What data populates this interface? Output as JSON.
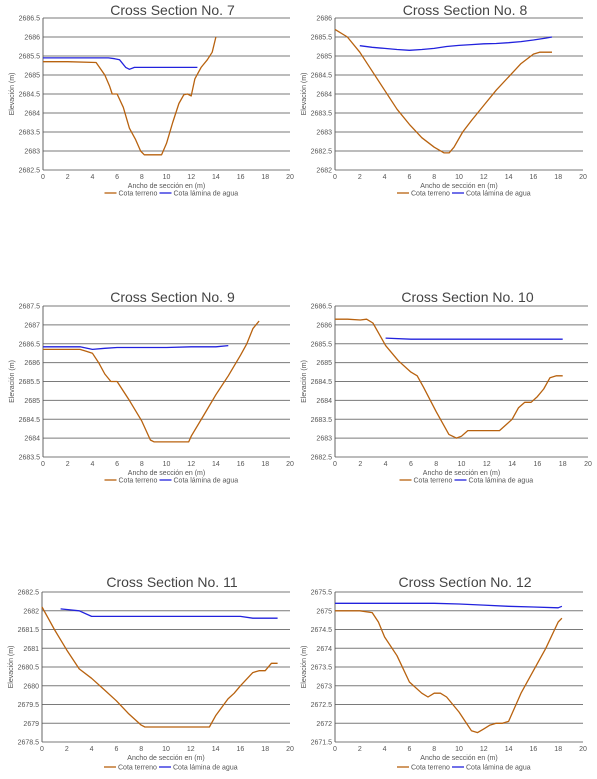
{
  "chart_data": [
    {
      "type": "line",
      "title": "Cross Section No. 7",
      "xlabel": "Ancho de sección en (m)",
      "ylabel": "Elevación (m)",
      "xlim": [
        0,
        20
      ],
      "ylim": [
        2682.5,
        2686.5
      ],
      "xticks": [
        0,
        2,
        4,
        6,
        8,
        10,
        12,
        14,
        16,
        18,
        20
      ],
      "yticks": [
        2682.5,
        2683,
        2683.5,
        2684,
        2684.5,
        2685,
        2685.5,
        2686,
        2686.5
      ],
      "ytick_labels": [
        "2682.5",
        "2683",
        "2683.5",
        "2684",
        "2684.5",
        "2685",
        "2685.5",
        "2686",
        "2686.5"
      ],
      "grid": true,
      "legend_position": "bottom",
      "series": [
        {
          "name": "Cota terreno",
          "color": "#b8620f",
          "x": [
            0,
            2,
            4.3,
            5,
            5.4,
            5.6,
            6,
            6.5,
            7,
            7.5,
            7.9,
            8.2,
            8.6,
            9.3,
            9.6,
            10,
            10.5,
            11,
            11.4,
            11.7,
            12,
            12.3,
            12.8,
            13.3,
            13.7,
            14
          ],
          "y": [
            2685.35,
            2685.35,
            2685.33,
            2685.0,
            2684.7,
            2684.5,
            2684.5,
            2684.15,
            2683.6,
            2683.3,
            2683.0,
            2682.9,
            2682.9,
            2682.9,
            2682.9,
            2683.2,
            2683.75,
            2684.25,
            2684.48,
            2684.5,
            2684.45,
            2684.9,
            2685.2,
            2685.4,
            2685.6,
            2686.0
          ]
        },
        {
          "name": "Cota lámina de agua",
          "color": "#2222dd",
          "x": [
            0,
            2,
            4,
            5.3,
            5.8,
            6.2,
            6.7,
            7.0,
            7.4,
            8,
            10,
            12,
            12.5
          ],
          "y": [
            2685.45,
            2685.45,
            2685.45,
            2685.45,
            2685.43,
            2685.4,
            2685.2,
            2685.15,
            2685.2,
            2685.2,
            2685.2,
            2685.2,
            2685.2
          ]
        }
      ]
    },
    {
      "type": "line",
      "title": "Cross Section No. 8",
      "xlabel": "Ancho de sección en (m)",
      "ylabel": "Elevación (m)",
      "xlim": [
        0,
        20
      ],
      "ylim": [
        2682,
        2686
      ],
      "xticks": [
        0,
        2,
        4,
        6,
        8,
        10,
        12,
        14,
        16,
        18,
        20
      ],
      "yticks": [
        2682,
        2682.5,
        2683,
        2683.5,
        2684,
        2684.5,
        2685,
        2685.5,
        2686
      ],
      "ytick_labels": [
        "2682",
        "2682.5",
        "2683",
        "2683.5",
        "2684",
        "2684.5",
        "2685",
        "2685.5",
        "2686"
      ],
      "grid": true,
      "legend_position": "bottom",
      "series": [
        {
          "name": "Cota terreno",
          "color": "#b8620f",
          "x": [
            0,
            1,
            2,
            3,
            4,
            5,
            6,
            7,
            8,
            8.8,
            9.2,
            9.6,
            10.3,
            11,
            12,
            13,
            14,
            15,
            16,
            16.5,
            17,
            17.5
          ],
          "y": [
            2685.7,
            2685.5,
            2685.1,
            2684.6,
            2684.1,
            2683.6,
            2683.2,
            2682.85,
            2682.6,
            2682.45,
            2682.45,
            2682.6,
            2683.0,
            2683.3,
            2683.7,
            2684.1,
            2684.45,
            2684.8,
            2685.05,
            2685.1,
            2685.1,
            2685.1
          ]
        },
        {
          "name": "Cota lámina de agua",
          "color": "#2222dd",
          "x": [
            2,
            3,
            4,
            5,
            6,
            7,
            8,
            9,
            10,
            11,
            12,
            13,
            14,
            15,
            16,
            17,
            17.5
          ],
          "y": [
            2685.27,
            2685.23,
            2685.2,
            2685.17,
            2685.15,
            2685.17,
            2685.2,
            2685.25,
            2685.28,
            2685.3,
            2685.32,
            2685.33,
            2685.35,
            2685.38,
            2685.42,
            2685.47,
            2685.5
          ]
        }
      ]
    },
    {
      "type": "line",
      "title": "Cross Section No. 9",
      "xlabel": "Ancho de sección en (m)",
      "ylabel": "Elevación (m)",
      "xlim": [
        0,
        20
      ],
      "ylim": [
        2683.5,
        2687.5
      ],
      "xticks": [
        0,
        2,
        4,
        6,
        8,
        10,
        12,
        14,
        16,
        18,
        20
      ],
      "yticks": [
        2683.5,
        2684,
        2684.5,
        2685,
        2685.5,
        2686,
        2686.5,
        2687,
        2687.5
      ],
      "ytick_labels": [
        "2683.5",
        "2684",
        "2684.5",
        "2685",
        "2685.5",
        "2686",
        "2686.5",
        "2687",
        "2687.5"
      ],
      "grid": true,
      "legend_position": "bottom",
      "series": [
        {
          "name": "Cota terreno",
          "color": "#b8620f",
          "x": [
            0,
            1,
            2,
            3,
            3.5,
            4,
            4.5,
            5,
            5.5,
            6,
            7,
            8,
            8.7,
            9,
            10,
            11,
            11.8,
            12,
            13,
            14,
            15,
            16,
            16.5,
            17,
            17.5
          ],
          "y": [
            2686.35,
            2686.35,
            2686.35,
            2686.35,
            2686.3,
            2686.25,
            2686.0,
            2685.7,
            2685.5,
            2685.5,
            2685.0,
            2684.45,
            2683.95,
            2683.9,
            2683.9,
            2683.9,
            2683.9,
            2684.05,
            2684.6,
            2685.15,
            2685.65,
            2686.2,
            2686.5,
            2686.9,
            2687.1
          ]
        },
        {
          "name": "Cota lámina de agua",
          "color": "#2222dd",
          "x": [
            0,
            1,
            2,
            3,
            4,
            5,
            6,
            8,
            10,
            12,
            14,
            15
          ],
          "y": [
            2686.42,
            2686.42,
            2686.42,
            2686.42,
            2686.35,
            2686.38,
            2686.4,
            2686.4,
            2686.4,
            2686.42,
            2686.42,
            2686.45
          ]
        }
      ]
    },
    {
      "type": "line",
      "title": "Cross Section No. 10",
      "xlabel": "Ancho de sección en (m)",
      "ylabel": "Elevación (m)",
      "xlim": [
        0,
        20
      ],
      "ylim": [
        2682.5,
        2686.5
      ],
      "xticks": [
        0,
        2,
        4,
        6,
        8,
        10,
        12,
        14,
        16,
        18,
        20
      ],
      "yticks": [
        2682.5,
        2683,
        2683.5,
        2684,
        2684.5,
        2685,
        2685.5,
        2686,
        2686.5
      ],
      "ytick_labels": [
        "2682.5",
        "2683",
        "2683.5",
        "2684",
        "2684.5",
        "2685",
        "2685.5",
        "2686",
        "2686.5"
      ],
      "grid": true,
      "legend_position": "bottom",
      "series": [
        {
          "name": "Cota terreno",
          "color": "#b8620f",
          "x": [
            0,
            1,
            2,
            2.5,
            3,
            3.5,
            4,
            5,
            6,
            6.5,
            7,
            8,
            9,
            9.6,
            10,
            10.5,
            11,
            12,
            13,
            14,
            14.5,
            15,
            15.5,
            16,
            16.5,
            17,
            17.5,
            18
          ],
          "y": [
            2686.15,
            2686.15,
            2686.13,
            2686.15,
            2686.05,
            2685.75,
            2685.45,
            2685.05,
            2684.75,
            2684.65,
            2684.35,
            2683.7,
            2683.1,
            2683.0,
            2683.05,
            2683.2,
            2683.2,
            2683.2,
            2683.2,
            2683.5,
            2683.8,
            2683.95,
            2683.95,
            2684.1,
            2684.3,
            2684.6,
            2684.65,
            2684.65
          ]
        },
        {
          "name": "Cota lámina de agua",
          "color": "#2222dd",
          "x": [
            4,
            6,
            8,
            10,
            12,
            14,
            16,
            18
          ],
          "y": [
            2685.65,
            2685.62,
            2685.62,
            2685.62,
            2685.62,
            2685.62,
            2685.62,
            2685.62
          ]
        }
      ]
    },
    {
      "type": "line",
      "title": "Cross Section No. 11",
      "xlabel": "Ancho de sección en (m)",
      "ylabel": "Elevación (m)",
      "xlim": [
        0,
        20
      ],
      "ylim": [
        2678.5,
        2682.5
      ],
      "xticks": [
        0,
        2,
        4,
        6,
        8,
        10,
        12,
        14,
        16,
        18,
        20
      ],
      "yticks": [
        2678.5,
        2679,
        2679.5,
        2680,
        2680.5,
        2681,
        2681.5,
        2682,
        2682.5
      ],
      "ytick_labels": [
        "2678.5",
        "2679",
        "2679.5",
        "2680",
        "2680.5",
        "2681",
        "2681.5",
        "2682",
        "2682.5"
      ],
      "grid": true,
      "legend_position": "bottom",
      "series": [
        {
          "name": "Cota terreno",
          "color": "#b8620f",
          "x": [
            0,
            0.5,
            1,
            2,
            3,
            4,
            5,
            6,
            7,
            8,
            8.3,
            9,
            10,
            11,
            12,
            13,
            13.5,
            14,
            15,
            15.5,
            16,
            17,
            17.5,
            18,
            18.5,
            19
          ],
          "y": [
            2682.1,
            2681.8,
            2681.5,
            2680.95,
            2680.45,
            2680.2,
            2679.9,
            2679.6,
            2679.25,
            2678.95,
            2678.9,
            2678.9,
            2678.9,
            2678.9,
            2678.9,
            2678.9,
            2678.9,
            2679.2,
            2679.65,
            2679.8,
            2680.0,
            2680.35,
            2680.4,
            2680.4,
            2680.6,
            2680.6
          ]
        },
        {
          "name": "Cota lámina de agua",
          "color": "#2222dd",
          "x": [
            1.5,
            3,
            4,
            5,
            8,
            10,
            12,
            14,
            16,
            17,
            19
          ],
          "y": [
            2682.05,
            2682.0,
            2681.85,
            2681.85,
            2681.85,
            2681.85,
            2681.85,
            2681.85,
            2681.85,
            2681.8,
            2681.8
          ]
        }
      ]
    },
    {
      "type": "line",
      "title": "Cross Sectíon No. 12",
      "xlabel": "Ancho de sección en (m)",
      "ylabel": "Elevación (m)",
      "xlim": [
        0,
        20
      ],
      "ylim": [
        2671.5,
        2675.5
      ],
      "xticks": [
        0,
        2,
        4,
        6,
        8,
        10,
        12,
        14,
        16,
        18,
        20
      ],
      "yticks": [
        2671.5,
        2672,
        2672.5,
        2673,
        2673.5,
        2674,
        2674.5,
        2675,
        2675.5
      ],
      "ytick_labels": [
        "2671.5",
        "2672",
        "2672.5",
        "2673",
        "2673.5",
        "2674",
        "2674.5",
        "2675",
        "2675.5"
      ],
      "grid": true,
      "legend_position": "bottom",
      "series": [
        {
          "name": "Cota terreno",
          "color": "#b8620f",
          "x": [
            0,
            1,
            2,
            3,
            3.5,
            4,
            5,
            6,
            7,
            7.5,
            8,
            8.5,
            9,
            9.5,
            10,
            10.5,
            11,
            11.5,
            12,
            12.5,
            13,
            13.5,
            14,
            15,
            16,
            17,
            18,
            18.3
          ],
          "y": [
            2675.0,
            2675.0,
            2675.0,
            2674.95,
            2674.7,
            2674.3,
            2673.8,
            2673.1,
            2672.8,
            2672.7,
            2672.8,
            2672.8,
            2672.7,
            2672.5,
            2672.3,
            2672.05,
            2671.8,
            2671.75,
            2671.85,
            2671.95,
            2672.0,
            2672.0,
            2672.05,
            2672.8,
            2673.4,
            2674.0,
            2674.7,
            2674.8
          ]
        },
        {
          "name": "Cota lámina de agua",
          "color": "#2222dd",
          "x": [
            0,
            1,
            2,
            4,
            6,
            8,
            10,
            12,
            14,
            16,
            18,
            18.3
          ],
          "y": [
            2675.2,
            2675.2,
            2675.2,
            2675.2,
            2675.2,
            2675.2,
            2675.18,
            2675.15,
            2675.12,
            2675.1,
            2675.08,
            2675.12
          ]
        }
      ]
    }
  ]
}
